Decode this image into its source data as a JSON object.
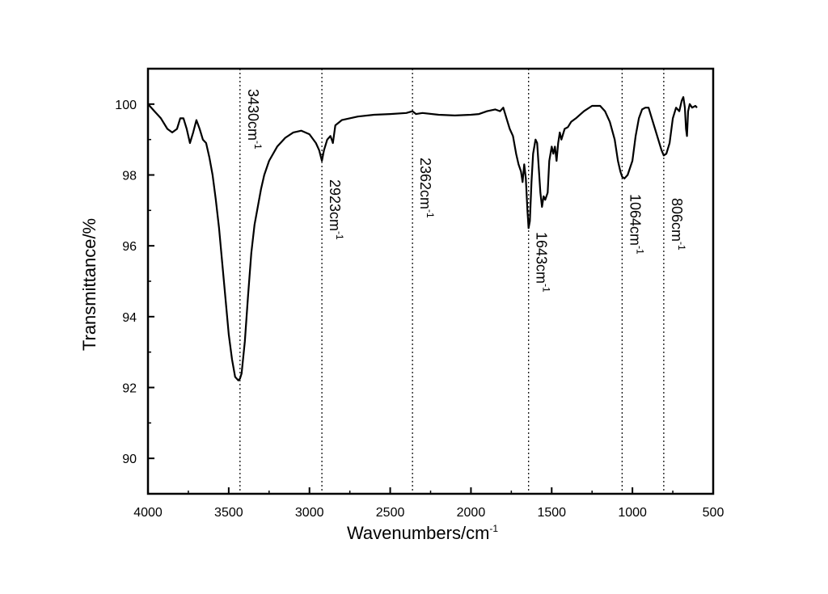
{
  "chart_data": {
    "type": "line",
    "title": "",
    "xlabel": "Wavenumbers/cm",
    "xlabel_sup": "-1",
    "ylabel": "Transmittance/%",
    "xlim": [
      4000,
      500
    ],
    "ylim": [
      89,
      101
    ],
    "x_reversed": true,
    "grid": false,
    "legend": "none",
    "x_ticks": [
      4000,
      3500,
      3000,
      2500,
      2000,
      1500,
      1000,
      500
    ],
    "x_tick_labels": [
      "4000",
      "3500",
      "3000",
      "2500",
      "2000",
      "1500",
      "1000",
      "500"
    ],
    "y_ticks": [
      90,
      92,
      94,
      96,
      98,
      100
    ],
    "y_tick_labels": [
      "90",
      "92",
      "94",
      "96",
      "98",
      "100"
    ],
    "line_color": "#000000",
    "series": [
      {
        "x": [
          4000,
          3960,
          3920,
          3880,
          3850,
          3820,
          3800,
          3780,
          3760,
          3740,
          3720,
          3700,
          3680,
          3660,
          3640,
          3620,
          3600,
          3580,
          3560,
          3540,
          3520,
          3500,
          3480,
          3460,
          3440,
          3430,
          3420,
          3400,
          3380,
          3360,
          3340,
          3320,
          3300,
          3280,
          3250,
          3200,
          3150,
          3100,
          3050,
          3000,
          2960,
          2940,
          2923,
          2910,
          2890,
          2870,
          2855,
          2840,
          2800,
          2700,
          2600,
          2500,
          2400,
          2362,
          2340,
          2300,
          2200,
          2100,
          2000,
          1950,
          1900,
          1850,
          1820,
          1800,
          1780,
          1760,
          1740,
          1720,
          1705,
          1690,
          1680,
          1670,
          1660,
          1650,
          1643,
          1635,
          1625,
          1615,
          1600,
          1590,
          1580,
          1570,
          1560,
          1550,
          1540,
          1525,
          1515,
          1500,
          1490,
          1480,
          1470,
          1460,
          1450,
          1440,
          1420,
          1400,
          1380,
          1350,
          1300,
          1250,
          1200,
          1170,
          1140,
          1110,
          1090,
          1075,
          1064,
          1050,
          1030,
          1000,
          980,
          960,
          940,
          920,
          900,
          880,
          860,
          840,
          820,
          806,
          790,
          770,
          750,
          730,
          710,
          695,
          685,
          675,
          668,
          662,
          655,
          645,
          630,
          610,
          600
        ],
        "y": [
          100.0,
          99.8,
          99.6,
          99.3,
          99.2,
          99.3,
          99.6,
          99.6,
          99.3,
          98.9,
          99.2,
          99.55,
          99.3,
          99.0,
          98.9,
          98.5,
          98.0,
          97.3,
          96.5,
          95.5,
          94.5,
          93.5,
          92.8,
          92.3,
          92.2,
          92.25,
          92.4,
          93.3,
          94.6,
          95.8,
          96.6,
          97.1,
          97.6,
          98.0,
          98.4,
          98.8,
          99.05,
          99.2,
          99.25,
          99.15,
          98.9,
          98.7,
          98.4,
          98.7,
          99.0,
          99.1,
          98.9,
          99.4,
          99.55,
          99.65,
          99.7,
          99.72,
          99.75,
          99.8,
          99.72,
          99.75,
          99.7,
          99.68,
          99.7,
          99.72,
          99.8,
          99.85,
          99.8,
          99.9,
          99.6,
          99.3,
          99.1,
          98.6,
          98.3,
          98.1,
          97.8,
          98.3,
          97.9,
          97.0,
          96.5,
          96.7,
          97.8,
          98.6,
          99.0,
          98.9,
          98.2,
          97.5,
          97.1,
          97.4,
          97.3,
          97.5,
          98.4,
          98.8,
          98.6,
          98.8,
          98.4,
          98.9,
          99.2,
          99.0,
          99.3,
          99.35,
          99.5,
          99.6,
          99.8,
          99.95,
          99.95,
          99.8,
          99.5,
          99.0,
          98.4,
          98.1,
          97.95,
          97.9,
          98.0,
          98.4,
          99.1,
          99.6,
          99.85,
          99.9,
          99.9,
          99.6,
          99.3,
          99.0,
          98.7,
          98.55,
          98.6,
          98.9,
          99.6,
          99.9,
          99.8,
          100.1,
          100.2,
          99.9,
          99.3,
          99.1,
          99.8,
          100.0,
          99.9,
          99.95,
          99.9
        ]
      }
    ],
    "annotations": [
      {
        "x": 3430,
        "text": "3430cm",
        "sup": "-1"
      },
      {
        "x": 2923,
        "text": "2923cm",
        "sup": "-1"
      },
      {
        "x": 2362,
        "text": "2362cm",
        "sup": "-1"
      },
      {
        "x": 1643,
        "text": "1643cm",
        "sup": "-1"
      },
      {
        "x": 1064,
        "text": "1064cm",
        "sup": "-1"
      },
      {
        "x": 806,
        "text": "806cm",
        "sup": "-1"
      }
    ]
  }
}
